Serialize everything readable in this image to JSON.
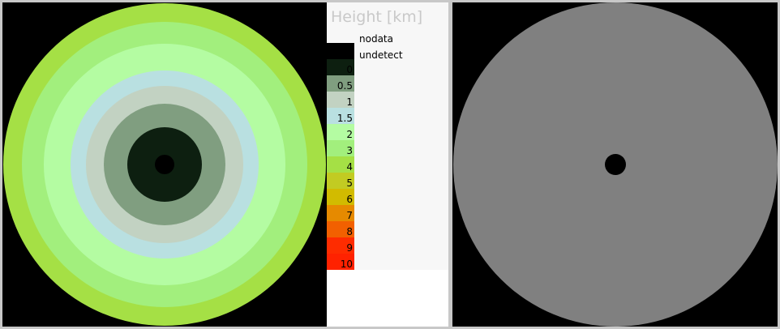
{
  "legend": {
    "title": "Height [km]",
    "named_classes": [
      {
        "label": "nodata",
        "color": "#ffffff"
      },
      {
        "label": "undetect",
        "color": "#000000"
      }
    ],
    "classes": [
      {
        "label": "0",
        "color": "#0d1f10"
      },
      {
        "label": "0.5",
        "color": "#809e80"
      },
      {
        "label": "1",
        "color": "#c2d2c2"
      },
      {
        "label": "1.5",
        "color": "#b9e0e1"
      },
      {
        "label": "2",
        "color": "#b4fca2"
      },
      {
        "label": "3",
        "color": "#a2ef7d"
      },
      {
        "label": "4",
        "color": "#a5e045"
      },
      {
        "label": "5",
        "color": "#c2cb22"
      },
      {
        "label": "6",
        "color": "#d2bb00"
      },
      {
        "label": "7",
        "color": "#e68a00"
      },
      {
        "label": "8",
        "color": "#f26000"
      },
      {
        "label": "9",
        "color": "#fe2c00"
      },
      {
        "label": "10",
        "color": "#ff2200"
      }
    ]
  },
  "colors": {
    "frame": "#c8c8c8",
    "undetect": "#000000",
    "right_panel_fill": "#808080"
  }
}
